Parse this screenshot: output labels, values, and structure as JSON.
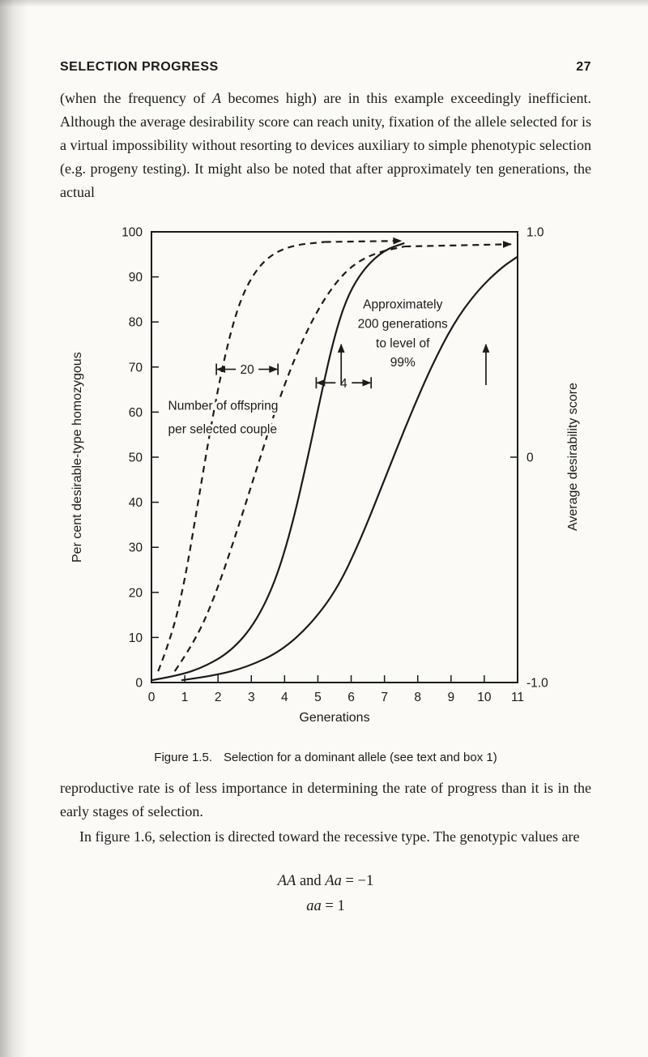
{
  "colors": {
    "ink": "#1b1b1b",
    "paper": "#fbfaf7"
  },
  "page": {
    "header": {
      "title": "SELECTION PROGRESS",
      "page_number": "27"
    },
    "paragraph1": {
      "pre": "(when the frequency of ",
      "em": "A",
      "post": " becomes high) are in this example exceedingly inefficient. Although the average desirability score can reach unity, fixation of the allele selected for is a virtual impossibility without resorting to devices auxiliary to simple phenotypic selection (e.g. progeny testing). It might also be noted that after approximately ten generations, the actual"
    },
    "figure_caption": {
      "label": "Figure 1.5.",
      "text": "Selection for a dominant allele (see text and box 1)"
    },
    "paragraph2": "reproductive rate is of less importance in determining the rate of progress than it is in the early stages of selection.",
    "paragraph3": "In figure 1.6, selection is directed toward the recessive type.  The genotypic values are",
    "equation1": {
      "term1": "AA",
      "mid": " and ",
      "term2": "Aa",
      "rhs": " = −1"
    },
    "equation2": {
      "term1": "aa",
      "rhs": " = 1"
    }
  },
  "chart_data": {
    "type": "line",
    "title": "",
    "xlabel": "Generations",
    "ylabel_left": "Per cent desirable-type homozygous",
    "ylabel_right": "Average desirability score",
    "x_range": [
      0,
      11
    ],
    "y_left_range": [
      0,
      100
    ],
    "y_right_range": [
      -1,
      1
    ],
    "grid": false,
    "legend": false,
    "x_ticks": [
      0,
      1,
      2,
      3,
      4,
      5,
      6,
      7,
      8,
      9,
      10,
      11
    ],
    "y_left_ticks": [
      0,
      10,
      20,
      30,
      40,
      50,
      60,
      70,
      80,
      90,
      100
    ],
    "y_right_ticks": [
      {
        "v": 1,
        "label": "1.0"
      },
      {
        "v": 0,
        "label": "0"
      },
      {
        "v": -1,
        "label": "-1.0"
      }
    ],
    "series": [
      {
        "name": "avg-desirability-score-20-offspring",
        "axis": "right",
        "line": "dashed",
        "points": [
          [
            0.2,
            -0.95
          ],
          [
            0.6,
            -0.8
          ],
          [
            1.0,
            -0.55
          ],
          [
            1.4,
            -0.2
          ],
          [
            1.8,
            0.15
          ],
          [
            2.2,
            0.45
          ],
          [
            2.6,
            0.67
          ],
          [
            3.0,
            0.8
          ],
          [
            3.5,
            0.89
          ],
          [
            4.2,
            0.94
          ],
          [
            5.2,
            0.955
          ]
        ],
        "arrow_to": [
          7.5,
          0.96
        ]
      },
      {
        "name": "avg-desirability-score-4-offspring",
        "axis": "right",
        "line": "dashed",
        "points": [
          [
            0.7,
            -0.95
          ],
          [
            1.3,
            -0.82
          ],
          [
            1.9,
            -0.62
          ],
          [
            2.5,
            -0.36
          ],
          [
            3.1,
            -0.08
          ],
          [
            3.7,
            0.2
          ],
          [
            4.3,
            0.44
          ],
          [
            4.9,
            0.63
          ],
          [
            5.5,
            0.77
          ],
          [
            6.1,
            0.86
          ],
          [
            6.8,
            0.91
          ],
          [
            7.6,
            0.935
          ]
        ],
        "arrow_to": [
          10.8,
          0.945
        ]
      },
      {
        "name": "pct-homozygous-20-offspring",
        "axis": "left",
        "line": "solid",
        "points": [
          [
            0,
            0.5
          ],
          [
            0.8,
            1.5
          ],
          [
            1.6,
            3.5
          ],
          [
            2.4,
            7
          ],
          [
            3.1,
            13
          ],
          [
            3.7,
            22
          ],
          [
            4.2,
            34
          ],
          [
            4.7,
            50
          ],
          [
            5.1,
            64
          ],
          [
            5.5,
            77
          ],
          [
            5.9,
            86
          ],
          [
            6.4,
            92
          ],
          [
            7.0,
            96
          ],
          [
            7.6,
            97.5
          ]
        ]
      },
      {
        "name": "pct-homozygous-4-offspring",
        "axis": "left",
        "line": "solid",
        "points": [
          [
            0.9,
            0.5
          ],
          [
            1.9,
            1.5
          ],
          [
            2.9,
            3.5
          ],
          [
            3.9,
            7
          ],
          [
            4.8,
            13
          ],
          [
            5.6,
            21
          ],
          [
            6.3,
            32
          ],
          [
            7.0,
            45
          ],
          [
            7.7,
            58
          ],
          [
            8.4,
            70
          ],
          [
            9.1,
            80
          ],
          [
            9.8,
            87
          ],
          [
            10.5,
            92
          ],
          [
            11,
            94.5
          ]
        ]
      }
    ],
    "annotations": {
      "offspring_label": {
        "lines": [
          "Number of offspring",
          "per selected couple"
        ],
        "x": 0.5,
        "y": 60.5,
        "line_step": 5.2,
        "align": "start"
      },
      "gen200_label": {
        "lines": [
          "Approximately",
          "200 generations",
          "to level of",
          "99%"
        ],
        "x": 7.55,
        "y": 83,
        "line_step": 4.3,
        "align": "middle"
      },
      "span_arrows": [
        {
          "label": "20",
          "x1": 1.95,
          "x2": 3.8,
          "y": 69.5
        },
        {
          "label": "4",
          "x1": 4.95,
          "x2": 6.6,
          "y": 66.5
        }
      ],
      "up_arrows": [
        {
          "x": 5.7,
          "y1": 66,
          "y2": 75
        },
        {
          "x": 10.05,
          "y1": 66,
          "y2": 75
        }
      ]
    }
  }
}
